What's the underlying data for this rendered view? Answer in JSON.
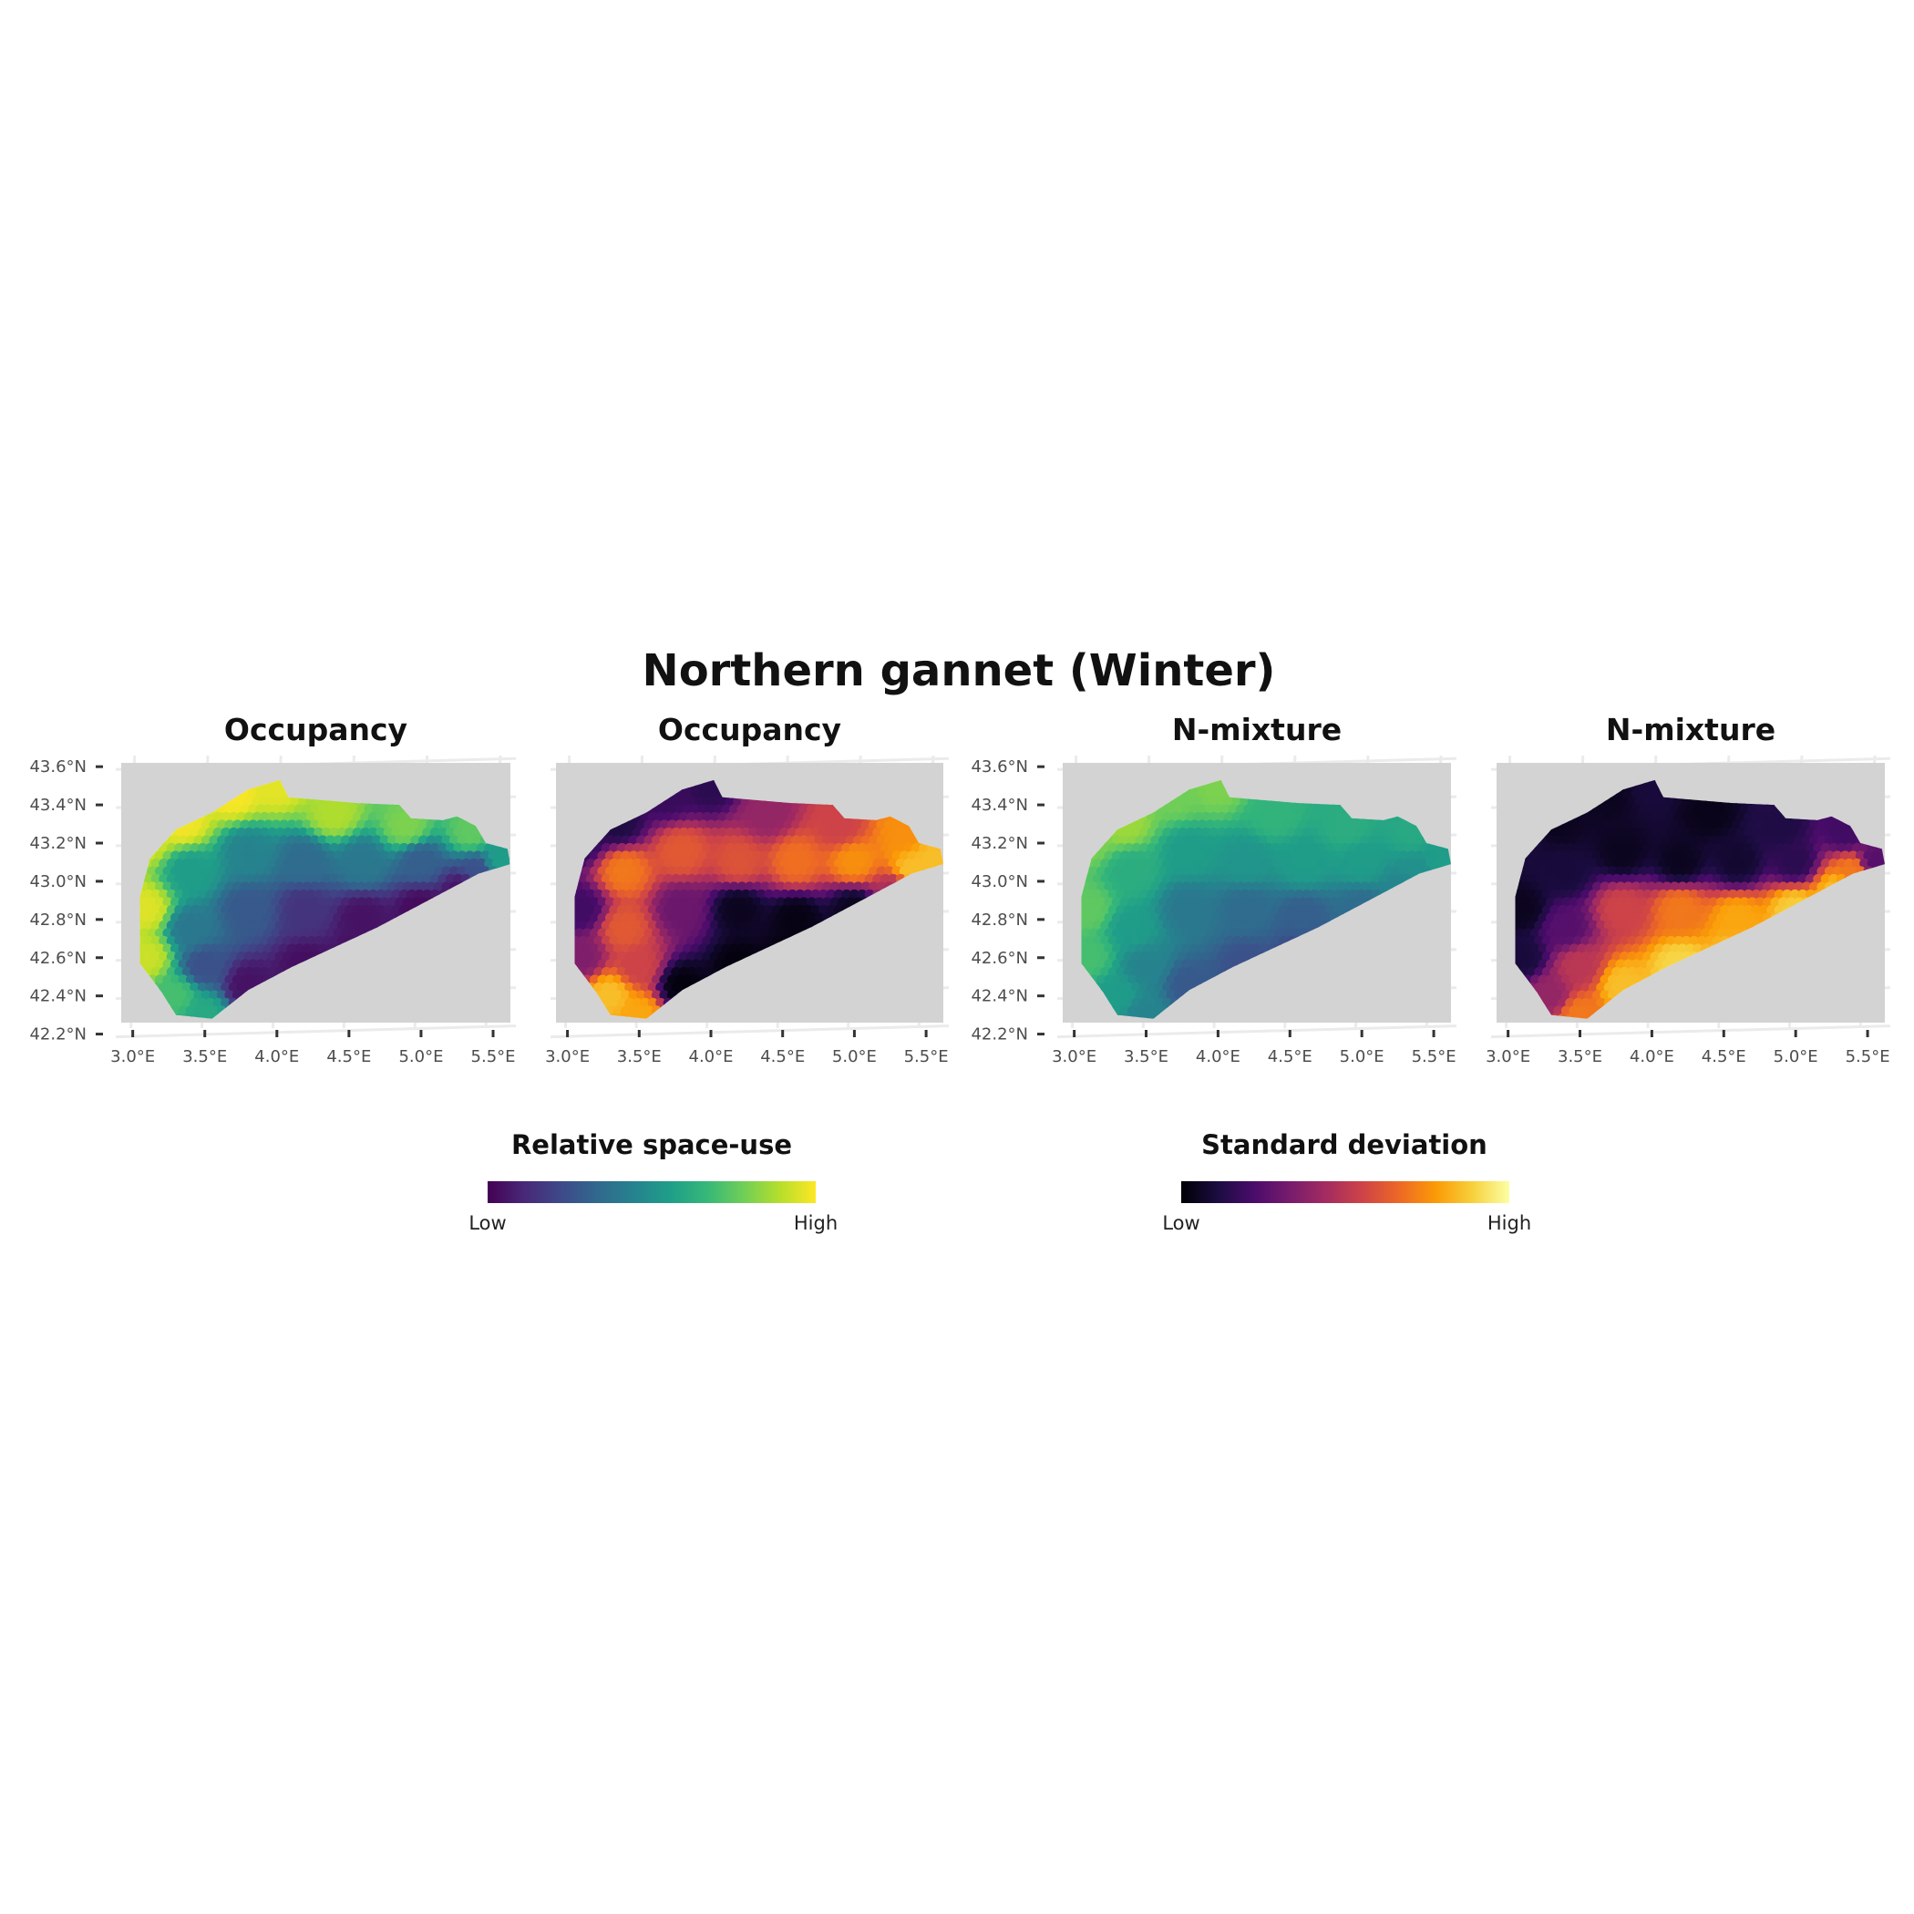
{
  "figure": {
    "title": "Northern gannet (Winter)"
  },
  "chart_data": [
    {
      "type": "heatmap",
      "title": "Occupancy",
      "metric": "Relative space-use",
      "palette": "viridis",
      "x_ticks": [
        "3.0°E",
        "3.5°E",
        "4.0°E",
        "4.5°E",
        "5.0°E",
        "5.5°E"
      ],
      "y_ticks": [
        "43.6°N",
        "43.4°N",
        "43.2°N",
        "43.0°N",
        "42.8°N",
        "42.6°N",
        "42.4°N",
        "42.2°N"
      ],
      "y_tick_labels_shown": true,
      "xlim": [
        2.92,
        5.62
      ],
      "ylim": [
        42.26,
        43.62
      ],
      "grid": true,
      "grid_points": [
        [
          3.1,
          43.22,
          0.94
        ],
        [
          3.35,
          43.3,
          0.98
        ],
        [
          3.7,
          43.45,
          0.99
        ],
        [
          4.0,
          43.5,
          0.96
        ],
        [
          4.4,
          43.35,
          0.88
        ],
        [
          4.9,
          43.28,
          0.8
        ],
        [
          5.35,
          43.25,
          0.75
        ],
        [
          5.55,
          43.1,
          0.55
        ],
        [
          3.1,
          42.85,
          0.95
        ],
        [
          3.4,
          43.05,
          0.55
        ],
        [
          3.8,
          43.15,
          0.45
        ],
        [
          4.2,
          43.1,
          0.35
        ],
        [
          4.6,
          43.1,
          0.4
        ],
        [
          5.0,
          43.1,
          0.3
        ],
        [
          5.4,
          43.05,
          0.25
        ],
        [
          3.1,
          42.6,
          0.92
        ],
        [
          3.4,
          42.75,
          0.4
        ],
        [
          3.8,
          42.85,
          0.28
        ],
        [
          4.2,
          42.85,
          0.15
        ],
        [
          4.6,
          42.8,
          0.05
        ],
        [
          5.0,
          42.85,
          0.03
        ],
        [
          5.3,
          42.95,
          0.05
        ],
        [
          3.3,
          42.4,
          0.7
        ],
        [
          3.5,
          42.3,
          0.6
        ],
        [
          3.8,
          42.45,
          0.05
        ],
        [
          4.2,
          42.55,
          0.04
        ],
        [
          4.6,
          42.62,
          0.04
        ],
        [
          3.5,
          42.55,
          0.25
        ]
      ]
    },
    {
      "type": "heatmap",
      "title": "Occupancy",
      "metric": "Standard deviation",
      "palette": "inferno",
      "x_ticks": [
        "3.0°E",
        "3.5°E",
        "4.0°E",
        "4.5°E",
        "5.0°E",
        "5.5°E"
      ],
      "y_tick_labels_shown": false,
      "xlim": [
        2.92,
        5.62
      ],
      "ylim": [
        42.26,
        43.62
      ],
      "grid": true,
      "grid_points": [
        [
          3.1,
          43.22,
          0.15
        ],
        [
          3.35,
          43.3,
          0.12
        ],
        [
          3.7,
          43.45,
          0.18
        ],
        [
          4.0,
          43.5,
          0.15
        ],
        [
          4.4,
          43.35,
          0.4
        ],
        [
          4.9,
          43.28,
          0.55
        ],
        [
          5.35,
          43.25,
          0.75
        ],
        [
          5.55,
          43.1,
          0.85
        ],
        [
          3.1,
          42.85,
          0.2
        ],
        [
          3.4,
          43.05,
          0.7
        ],
        [
          3.8,
          43.15,
          0.62
        ],
        [
          4.2,
          43.1,
          0.6
        ],
        [
          4.6,
          43.1,
          0.68
        ],
        [
          5.0,
          43.1,
          0.75
        ],
        [
          5.4,
          43.05,
          0.85
        ],
        [
          3.1,
          42.6,
          0.35
        ],
        [
          3.4,
          42.75,
          0.62
        ],
        [
          3.8,
          42.85,
          0.3
        ],
        [
          4.2,
          42.85,
          0.05
        ],
        [
          4.6,
          42.8,
          0.03
        ],
        [
          5.0,
          42.85,
          0.05
        ],
        [
          5.3,
          42.95,
          0.45
        ],
        [
          3.3,
          42.4,
          0.85
        ],
        [
          3.5,
          42.3,
          0.8
        ],
        [
          3.8,
          42.45,
          0.02
        ],
        [
          4.2,
          42.55,
          0.02
        ],
        [
          4.6,
          42.62,
          0.02
        ],
        [
          3.5,
          42.55,
          0.55
        ]
      ]
    },
    {
      "type": "heatmap",
      "title": "N-mixture",
      "metric": "Relative space-use",
      "palette": "viridis",
      "x_ticks": [
        "3.0°E",
        "3.5°E",
        "4.0°E",
        "4.5°E",
        "5.0°E",
        "5.5°E"
      ],
      "y_ticks": [
        "43.6°N",
        "43.4°N",
        "43.2°N",
        "43.0°N",
        "42.8°N",
        "42.6°N",
        "42.4°N",
        "42.2°N"
      ],
      "y_tick_labels_shown": true,
      "xlim": [
        2.92,
        5.62
      ],
      "ylim": [
        42.26,
        43.62
      ],
      "grid": true,
      "grid_points": [
        [
          3.1,
          43.22,
          0.8
        ],
        [
          3.35,
          43.3,
          0.85
        ],
        [
          3.7,
          43.45,
          0.78
        ],
        [
          4.0,
          43.5,
          0.8
        ],
        [
          4.4,
          43.35,
          0.65
        ],
        [
          4.9,
          43.28,
          0.62
        ],
        [
          5.35,
          43.25,
          0.6
        ],
        [
          5.55,
          43.1,
          0.55
        ],
        [
          3.1,
          42.85,
          0.75
        ],
        [
          3.4,
          43.05,
          0.62
        ],
        [
          3.8,
          43.15,
          0.55
        ],
        [
          4.2,
          43.1,
          0.52
        ],
        [
          4.6,
          43.1,
          0.55
        ],
        [
          5.0,
          43.1,
          0.55
        ],
        [
          5.4,
          43.05,
          0.5
        ],
        [
          3.1,
          42.6,
          0.7
        ],
        [
          3.4,
          42.75,
          0.55
        ],
        [
          3.8,
          42.85,
          0.4
        ],
        [
          4.2,
          42.85,
          0.35
        ],
        [
          4.6,
          42.8,
          0.3
        ],
        [
          5.0,
          42.85,
          0.35
        ],
        [
          5.3,
          42.95,
          0.45
        ],
        [
          3.3,
          42.4,
          0.55
        ],
        [
          3.5,
          42.3,
          0.45
        ],
        [
          3.8,
          42.45,
          0.28
        ],
        [
          4.2,
          42.55,
          0.25
        ],
        [
          4.6,
          42.62,
          0.22
        ],
        [
          3.5,
          42.55,
          0.45
        ]
      ]
    },
    {
      "type": "heatmap",
      "title": "N-mixture",
      "metric": "Standard deviation",
      "palette": "inferno",
      "x_ticks": [
        "3.0°E",
        "3.5°E",
        "4.0°E",
        "4.5°E",
        "5.0°E",
        "5.5°E"
      ],
      "y_tick_labels_shown": false,
      "xlim": [
        2.92,
        5.62
      ],
      "ylim": [
        42.26,
        43.62
      ],
      "grid": true,
      "grid_points": [
        [
          3.1,
          43.22,
          0.1
        ],
        [
          3.35,
          43.3,
          0.05
        ],
        [
          3.7,
          43.45,
          0.05
        ],
        [
          4.0,
          43.5,
          0.1
        ],
        [
          4.4,
          43.35,
          0.04
        ],
        [
          4.9,
          43.28,
          0.12
        ],
        [
          5.35,
          43.25,
          0.2
        ],
        [
          5.55,
          43.1,
          0.25
        ],
        [
          3.1,
          42.85,
          0.05
        ],
        [
          3.4,
          43.05,
          0.1
        ],
        [
          3.8,
          43.15,
          0.05
        ],
        [
          4.2,
          43.1,
          0.05
        ],
        [
          4.6,
          43.1,
          0.08
        ],
        [
          5.0,
          43.1,
          0.15
        ],
        [
          5.4,
          43.05,
          0.7
        ],
        [
          3.1,
          42.6,
          0.1
        ],
        [
          3.4,
          42.75,
          0.25
        ],
        [
          3.8,
          42.85,
          0.55
        ],
        [
          4.2,
          42.85,
          0.7
        ],
        [
          4.6,
          42.8,
          0.8
        ],
        [
          5.0,
          42.85,
          0.88
        ],
        [
          5.3,
          42.95,
          0.85
        ],
        [
          3.3,
          42.4,
          0.4
        ],
        [
          3.5,
          42.3,
          0.7
        ],
        [
          3.8,
          42.45,
          0.85
        ],
        [
          4.2,
          42.55,
          0.9
        ],
        [
          4.6,
          42.62,
          0.85
        ],
        [
          3.5,
          42.55,
          0.5
        ]
      ]
    }
  ],
  "legends": [
    {
      "title": "Relative space-use",
      "palette": "viridis",
      "low_label": "Low",
      "high_label": "High"
    },
    {
      "title": "Standard deviation",
      "palette": "inferno",
      "low_label": "Low",
      "high_label": "High"
    }
  ],
  "colors": {
    "land": "#d3d3d3",
    "grid": "#ebebeb",
    "background": "#ffffff",
    "viridis": [
      "#440154",
      "#482878",
      "#3e4989",
      "#31688e",
      "#26828e",
      "#1f9e89",
      "#35b779",
      "#6ece58",
      "#b5de2b",
      "#fde725"
    ],
    "inferno": [
      "#000004",
      "#1b0c41",
      "#4a0c6b",
      "#781c6d",
      "#a52c60",
      "#cf4446",
      "#ed6925",
      "#fb9b06",
      "#f7d13d",
      "#fcffa4"
    ]
  }
}
